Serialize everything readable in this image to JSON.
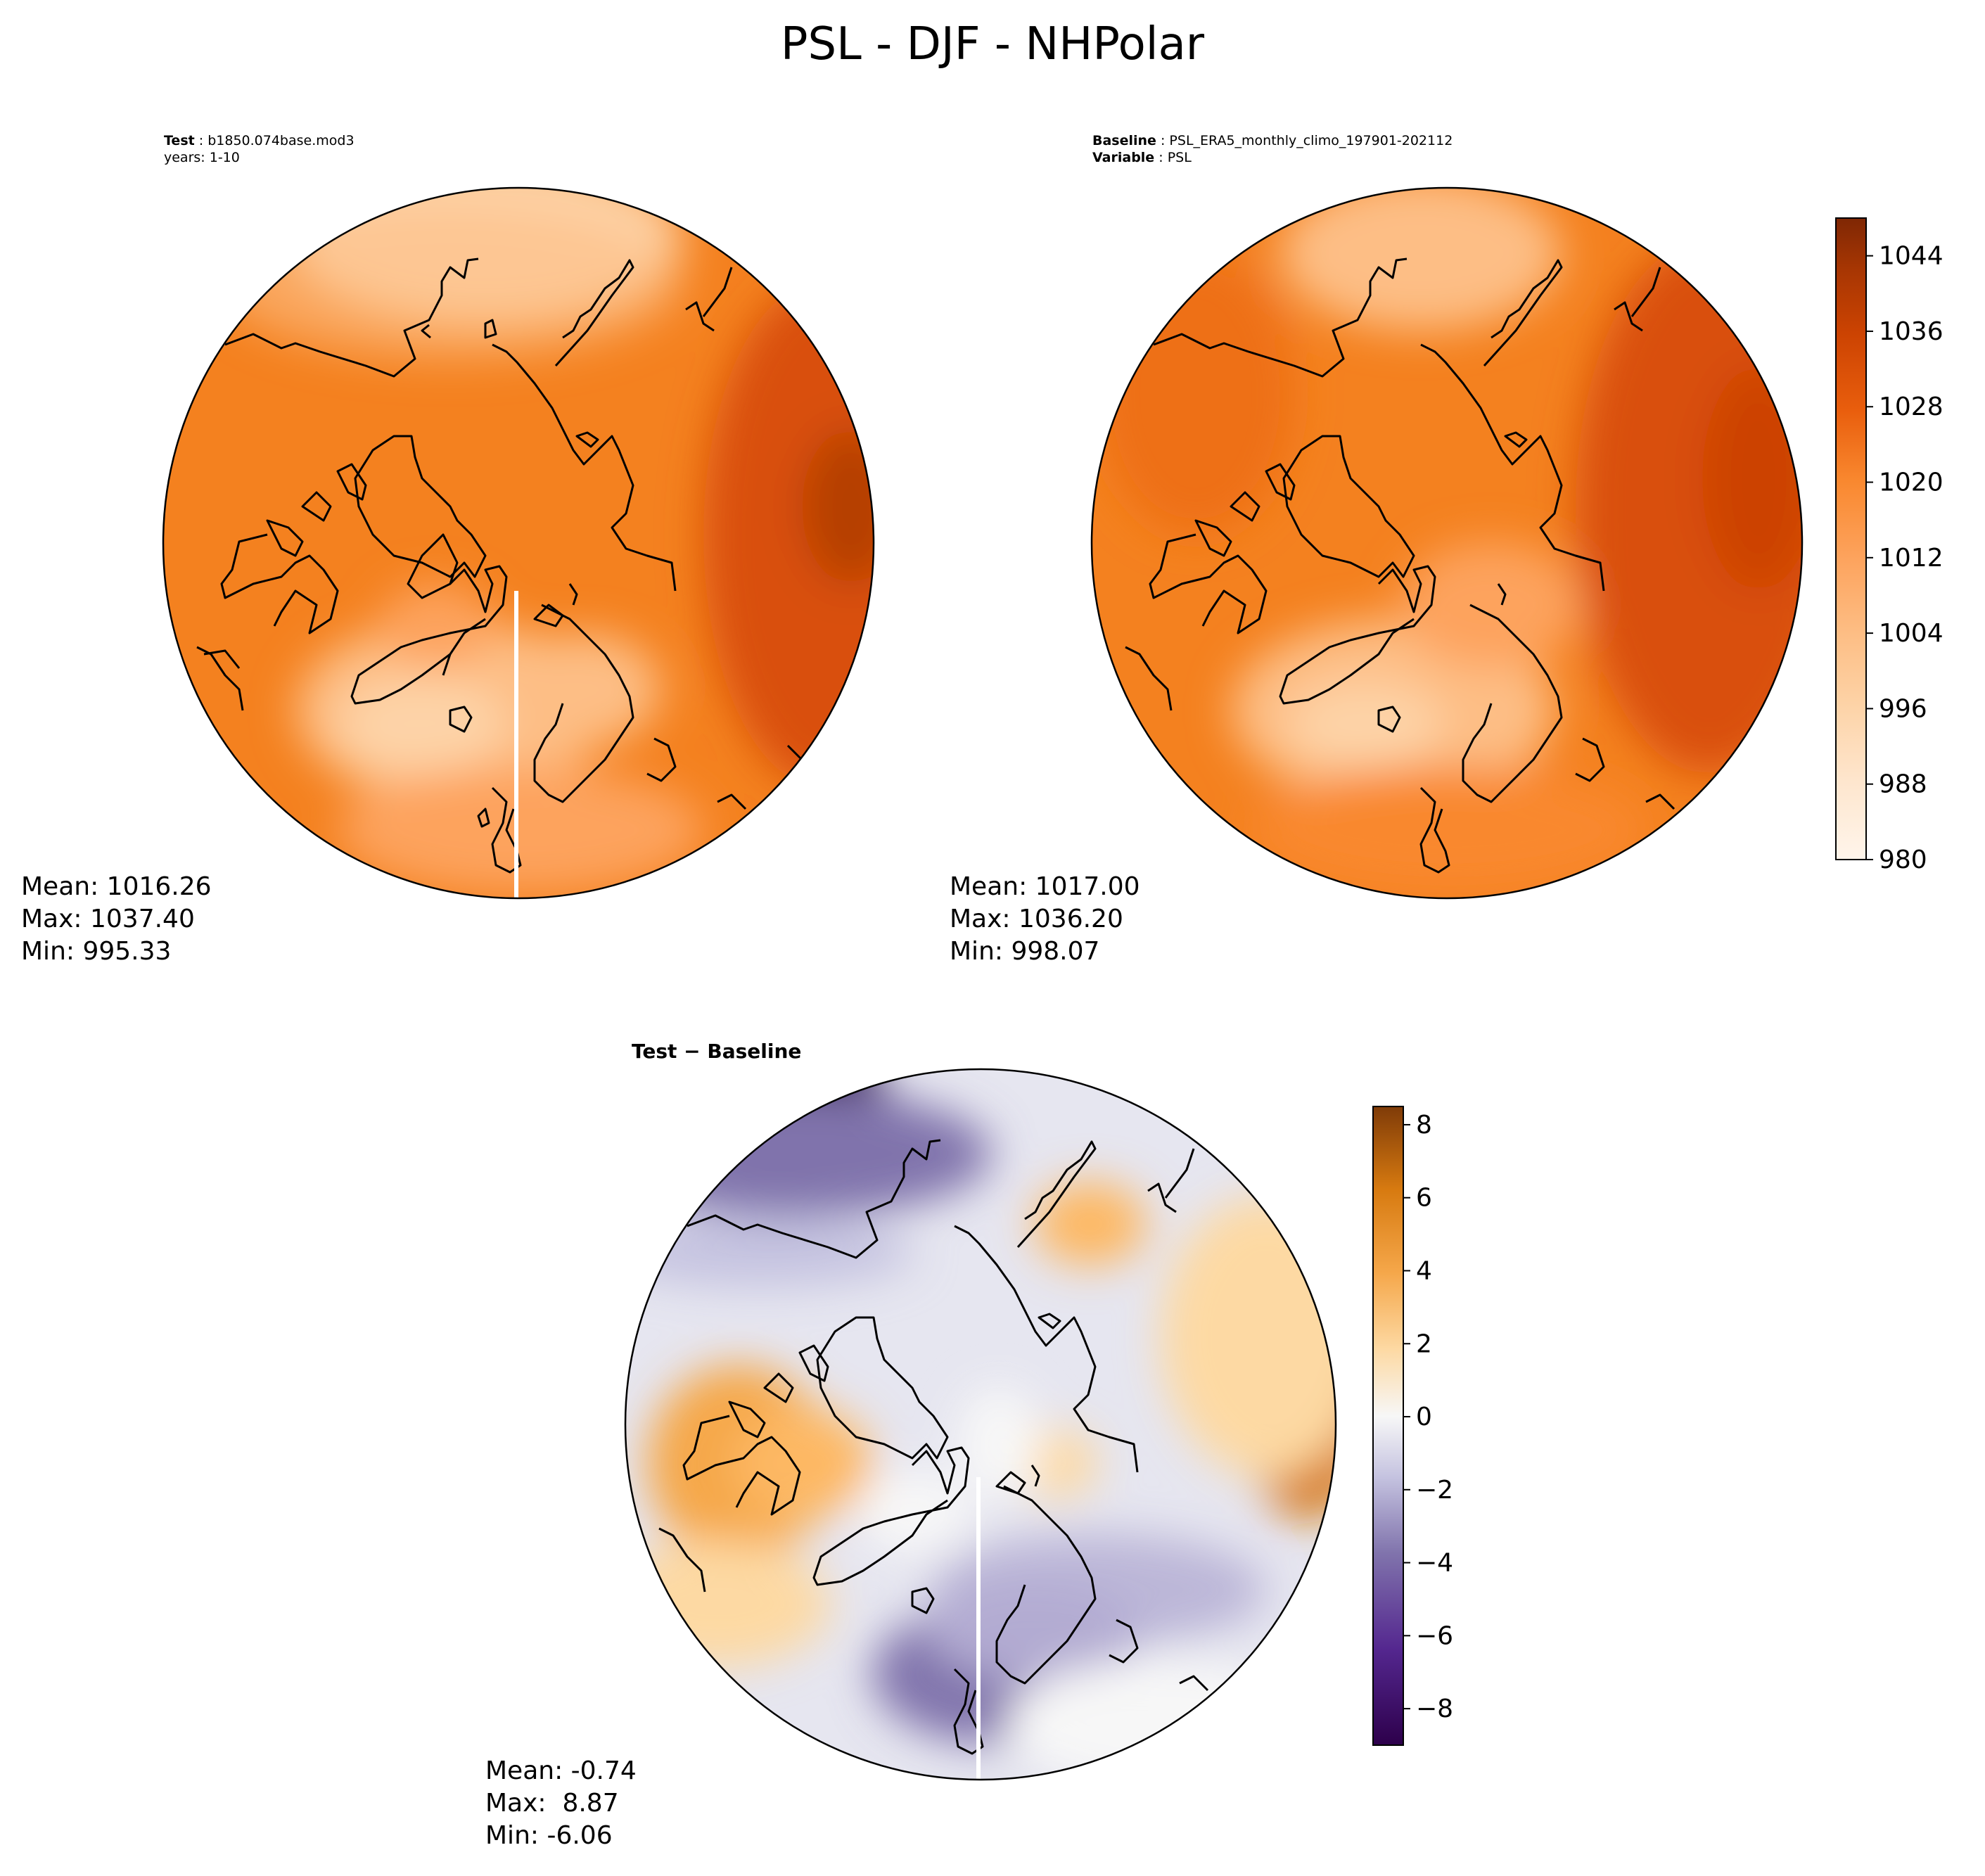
{
  "figure": {
    "title": "PSL - DJF - NHPolar"
  },
  "colors": {
    "psl_palette": [
      "#fff5eb",
      "#fee6ce",
      "#fdd3a7",
      "#fdbe85",
      "#fda35d",
      "#f9882f",
      "#f4701c",
      "#e25508",
      "#cc4302",
      "#a73603",
      "#7f2704"
    ],
    "diff_palette_low": [
      "#2d004b",
      "#4f2a8c",
      "#8073ac",
      "#b2abd2",
      "#d8daeb",
      "#f7f7f7"
    ],
    "diff_palette_high": [
      "#f7f7f7",
      "#fee0b6",
      "#fdb863",
      "#e08214",
      "#b35806",
      "#7f3b08"
    ]
  },
  "panels": {
    "test": {
      "label_key": "Test",
      "label_value": "b1850.074base.mod3",
      "years": "years: 1-10",
      "mean": "Mean: 1016.26",
      "max": "Max: 1037.40",
      "min": "Min: 995.33"
    },
    "baseline": {
      "label_key": "Baseline",
      "label_value": "PSL_ERA5_monthly_climo_197901-202112",
      "variable_key": "Variable",
      "variable_value": "PSL",
      "mean": "Mean: 1017.00",
      "max": "Max: 1036.20",
      "min": "Min: 998.07"
    },
    "diff": {
      "title": "Test − Baseline",
      "mean": "Mean: -0.74",
      "max": "Max:  8.87",
      "min": "Min: -6.06"
    }
  },
  "chart_data": [
    {
      "type": "heatmap",
      "title": "Test",
      "variable": "PSL",
      "colorbar_range": [
        980,
        1048
      ],
      "levels": [
        980,
        988,
        996,
        1004,
        1012,
        1020,
        1028,
        1036,
        1044
      ]
    },
    {
      "type": "heatmap",
      "title": "Baseline",
      "variable": "PSL",
      "colorbar_range": [
        980,
        1048
      ],
      "colorbar_ticks": [
        "980",
        "988",
        "996",
        "1004",
        "1012",
        "1020",
        "1028",
        "1036",
        "1044"
      ]
    },
    {
      "type": "heatmap",
      "title": "Test − Baseline",
      "colorbar_range": [
        -9,
        8.5
      ],
      "colorbar_ticks": [
        "−8",
        "−6",
        "−4",
        "−2",
        "0",
        "2",
        "4",
        "6",
        "8"
      ]
    }
  ]
}
